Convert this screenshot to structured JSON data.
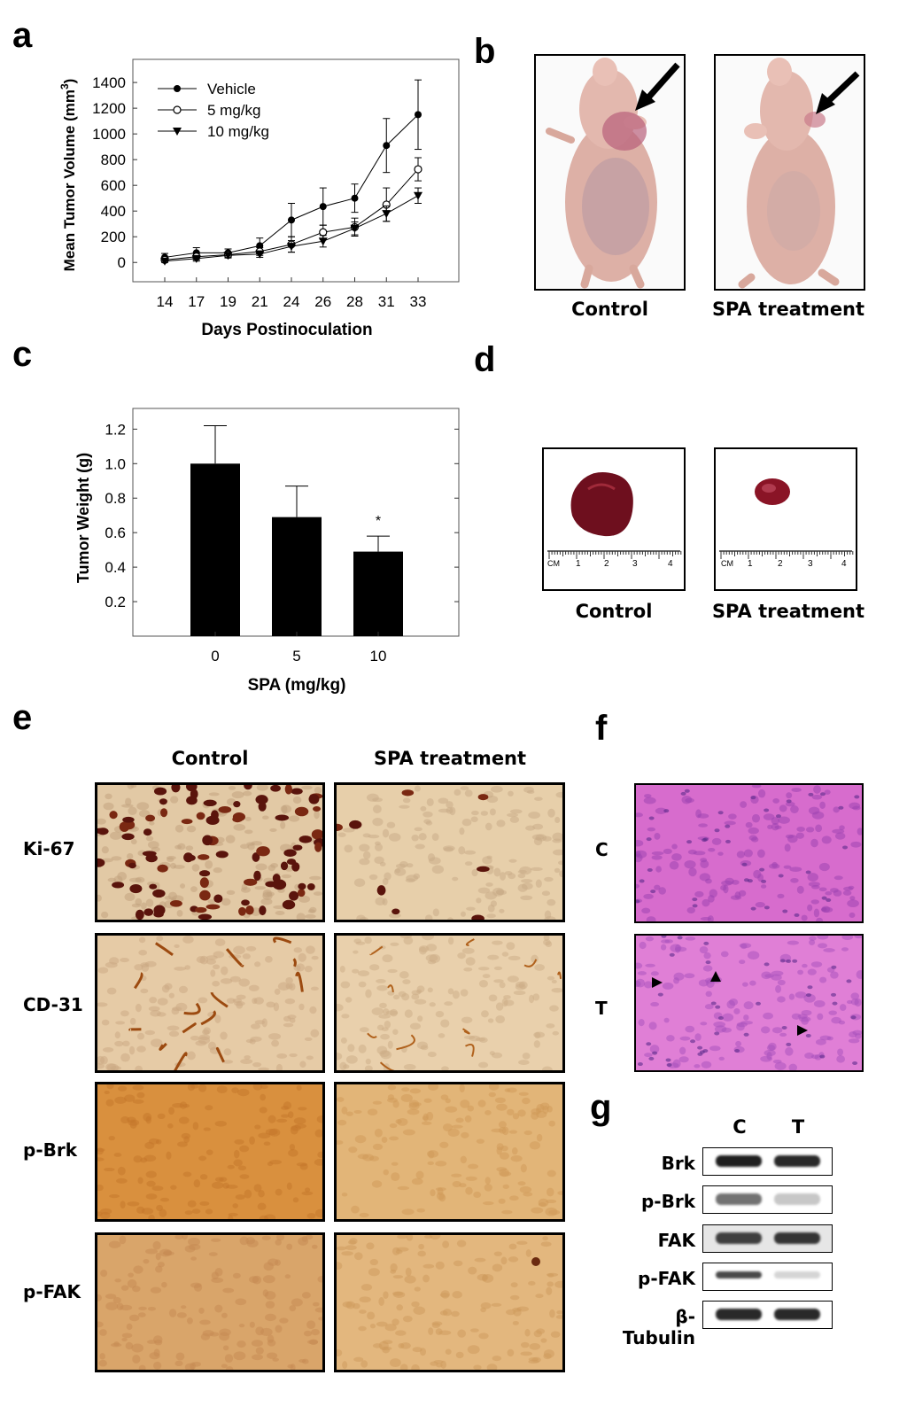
{
  "panel_letters": [
    "a",
    "b",
    "c",
    "d",
    "e",
    "f",
    "g"
  ],
  "chart_data": [
    {
      "type": "line",
      "panel": "a",
      "xlabel": "Days Postinoculation",
      "ylabel": "Mean Tumor Volume (mm3)",
      "ylabel_main": "Mean Tumor Volume (mm",
      "ylabel_sup": "3",
      "ylabel_close": ")",
      "categories": [
        "14",
        "17",
        "19",
        "21",
        "24",
        "26",
        "28",
        "31",
        "33"
      ],
      "yticks": [
        "0",
        "200",
        "400",
        "600",
        "800",
        "1000",
        "1200",
        "1400"
      ],
      "ylim": [
        -150,
        1580
      ],
      "legend_position": "top-left",
      "series": [
        {
          "name": "Vehicle",
          "marker": "filled-circle",
          "values": [
            40,
            75,
            75,
            130,
            330,
            435,
            500,
            910,
            1150
          ],
          "errors": [
            30,
            40,
            30,
            60,
            130,
            145,
            110,
            210,
            270
          ]
        },
        {
          "name": "5 mg/kg",
          "marker": "open-circle",
          "values": [
            20,
            45,
            60,
            85,
            140,
            235,
            275,
            450,
            725
          ],
          "errors": [
            15,
            25,
            20,
            30,
            60,
            55,
            70,
            130,
            90
          ]
        },
        {
          "name": "10 mg/kg",
          "marker": "down-triangle",
          "values": [
            10,
            30,
            55,
            65,
            125,
            165,
            265,
            380,
            520
          ],
          "errors": [
            10,
            20,
            20,
            25,
            45,
            45,
            50,
            60,
            60
          ]
        }
      ]
    },
    {
      "type": "bar",
      "panel": "c",
      "xlabel": "SPA (mg/kg)",
      "ylabel": "Tumor Weight (g)",
      "categories": [
        "0",
        "5",
        "10"
      ],
      "values": [
        1.0,
        0.69,
        0.49
      ],
      "errors": [
        0.22,
        0.18,
        0.09
      ],
      "annotations": [
        "",
        "",
        "*"
      ],
      "yticks": [
        "0.2",
        "0.4",
        "0.6",
        "0.8",
        "1.0",
        "1.2"
      ],
      "ylim": [
        0.0,
        1.32
      ],
      "bar_color": "#000000"
    }
  ],
  "panel_b": {
    "captions": [
      "Control",
      "SPA treatment"
    ]
  },
  "panel_d": {
    "captions": [
      "Control",
      "SPA treatment"
    ],
    "ruler_labels": [
      "CM",
      "1",
      "2",
      "3",
      "4"
    ]
  },
  "panel_e": {
    "columns": [
      "Control",
      "SPA treatment"
    ],
    "rows": [
      "Ki-67",
      "CD-31",
      "p-Brk",
      "p-FAK"
    ]
  },
  "panel_f": {
    "rows": [
      "C",
      "T"
    ]
  },
  "panel_g": {
    "columns": [
      "C",
      "T"
    ],
    "bands": [
      {
        "label": "Brk",
        "c": 0.95,
        "t": 0.9
      },
      {
        "label": "p-Brk",
        "c": 0.55,
        "t": 0.15
      },
      {
        "label": "FAK",
        "c": 0.8,
        "t": 0.85
      },
      {
        "label": "p-FAK",
        "c": 0.75,
        "t": 0.08
      },
      {
        "label": "β-Tubulin",
        "c": 0.9,
        "t": 0.9
      }
    ]
  },
  "colors": {
    "ki67_stain": "#6b1a10",
    "dab_brown": "#c8802a",
    "he_pink": "#d86fd0",
    "tumor_red": "#7a1020",
    "mouse_skin": "#e0b2a8"
  }
}
